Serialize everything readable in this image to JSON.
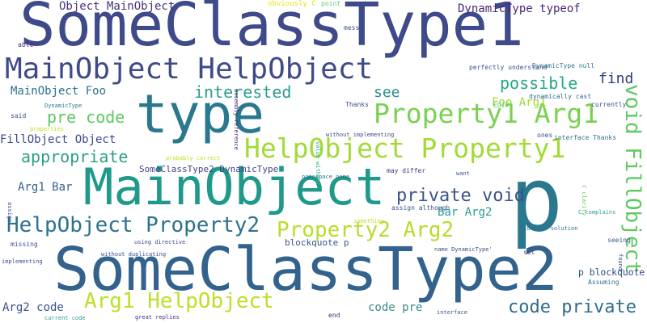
{
  "words": [
    {
      "text": "SomeClassType1",
      "color": "#3f4a8a"
    },
    {
      "text": "SomeClassType2",
      "color": "#33638d"
    },
    {
      "text": "type",
      "color": "#2a788e"
    },
    {
      "text": "MainObject",
      "color": "#1f9a8a"
    },
    {
      "text": "p",
      "color": "#2a788e"
    },
    {
      "text": "MainObject HelpObject",
      "color": "#3f4a8a"
    },
    {
      "text": "HelpObject Property1",
      "color": "#a2da37"
    },
    {
      "text": "Property1 Arg1",
      "color": "#7ad151"
    },
    {
      "text": "HelpObject Property2",
      "color": "#2c728e"
    },
    {
      "text": "Property2 Arg2",
      "color": "#b5de2b"
    },
    {
      "text": "Arg1 HelpObject",
      "color": "#bddf26"
    },
    {
      "text": "void FillObject",
      "color": "#5ec962"
    },
    {
      "text": "code private",
      "color": "#2f6c8e"
    },
    {
      "text": "private void",
      "color": "#3b528b"
    },
    {
      "text": "appropriate",
      "color": "#2e9f86"
    },
    {
      "text": "interested",
      "color": "#2a9d8f"
    },
    {
      "text": "possible",
      "color": "#22a884"
    },
    {
      "text": "pre code",
      "color": "#5ec962"
    },
    {
      "text": "find",
      "color": "#2d3f7c"
    },
    {
      "text": "see",
      "color": "#2b8f8c"
    },
    {
      "text": "Object MainObject",
      "color": "#48337c"
    },
    {
      "text": "DynamicType typeof",
      "color": "#482878"
    },
    {
      "text": "MainObject Foo",
      "color": "#2d708e"
    },
    {
      "text": "FillObject Object",
      "color": "#3d4b8a"
    },
    {
      "text": "Foo Arg1",
      "color": "#9cd839"
    },
    {
      "text": "Arg1 Bar",
      "color": "#33638d"
    },
    {
      "text": "Bar Arg2",
      "color": "#2a9d8f"
    },
    {
      "text": "Arg2 code",
      "color": "#3b528b"
    },
    {
      "text": "code pre",
      "color": "#3b8a8c"
    },
    {
      "text": "p blockquote",
      "color": "#2d4a86"
    },
    {
      "text": "blockquote p",
      "color": "#3a558b"
    },
    {
      "text": "SomeClassType2 DynamicType",
      "color": "#414487"
    },
    {
      "text": "obviously C",
      "color": "#e7e419"
    },
    {
      "text": "point",
      "color": "#5ec962"
    },
    {
      "text": "messy",
      "color": "#3a538b"
    },
    {
      "text": "able",
      "color": "#482878"
    },
    {
      "text": "assembly reference",
      "color": "#472d7b"
    },
    {
      "text": "DynamicType null",
      "color": "#2a788e"
    },
    {
      "text": "perfectly understand",
      "color": "#3b528b"
    },
    {
      "text": "dynamically cast",
      "color": "#2f6c8e"
    },
    {
      "text": "Thanks",
      "color": "#3e4989"
    },
    {
      "text": "EDIT",
      "color": "#5ec962"
    },
    {
      "text": "currently",
      "color": "#3b528b"
    },
    {
      "text": "DynamicType",
      "color": "#2a788e"
    },
    {
      "text": "said",
      "color": "#3b528b"
    },
    {
      "text": "properties",
      "color": "#bddf26"
    },
    {
      "text": "value without",
      "color": "#29af7f"
    },
    {
      "text": "without implementing",
      "color": "#3f4a8a"
    },
    {
      "text": "ones",
      "color": "#3b528b"
    },
    {
      "text": "interface Thanks",
      "color": "#2d708e"
    },
    {
      "text": "probably correct",
      "color": "#c2df23"
    },
    {
      "text": "namespace name",
      "color": "#2a788e"
    },
    {
      "text": "may differ",
      "color": "#46327e"
    },
    {
      "text": "want",
      "color": "#3b528b"
    },
    {
      "text": "C clarify",
      "color": "#5ec962"
    },
    {
      "text": "assign although",
      "color": "#3a538b"
    },
    {
      "text": "C complains",
      "color": "#2a9d8f"
    },
    {
      "text": "correct solution",
      "color": "#2d708e"
    },
    {
      "text": "assign",
      "color": "#3b528b"
    },
    {
      "text": "something",
      "color": "#bddf26"
    },
    {
      "text": "missing",
      "color": "#3b528b"
    },
    {
      "text": "using directive",
      "color": "#3f4a8a"
    },
    {
      "text": "without duplicating",
      "color": "#3b528b"
    },
    {
      "text": "name DynamicType'",
      "color": "#3b528b"
    },
    {
      "text": "set",
      "color": "#3b528b"
    },
    {
      "text": "seeing",
      "color": "#3b528b"
    },
    {
      "text": "found",
      "color": "#2d4a86"
    },
    {
      "text": "Assuming",
      "color": "#2d708e"
    },
    {
      "text": "implementing",
      "color": "#3b528b"
    },
    {
      "text": "current code",
      "color": "#2a9d8f"
    },
    {
      "text": "great replies",
      "color": "#472d7b"
    },
    {
      "text": "end",
      "color": "#482878"
    },
    {
      "text": "interface",
      "color": "#3b528b"
    }
  ]
}
